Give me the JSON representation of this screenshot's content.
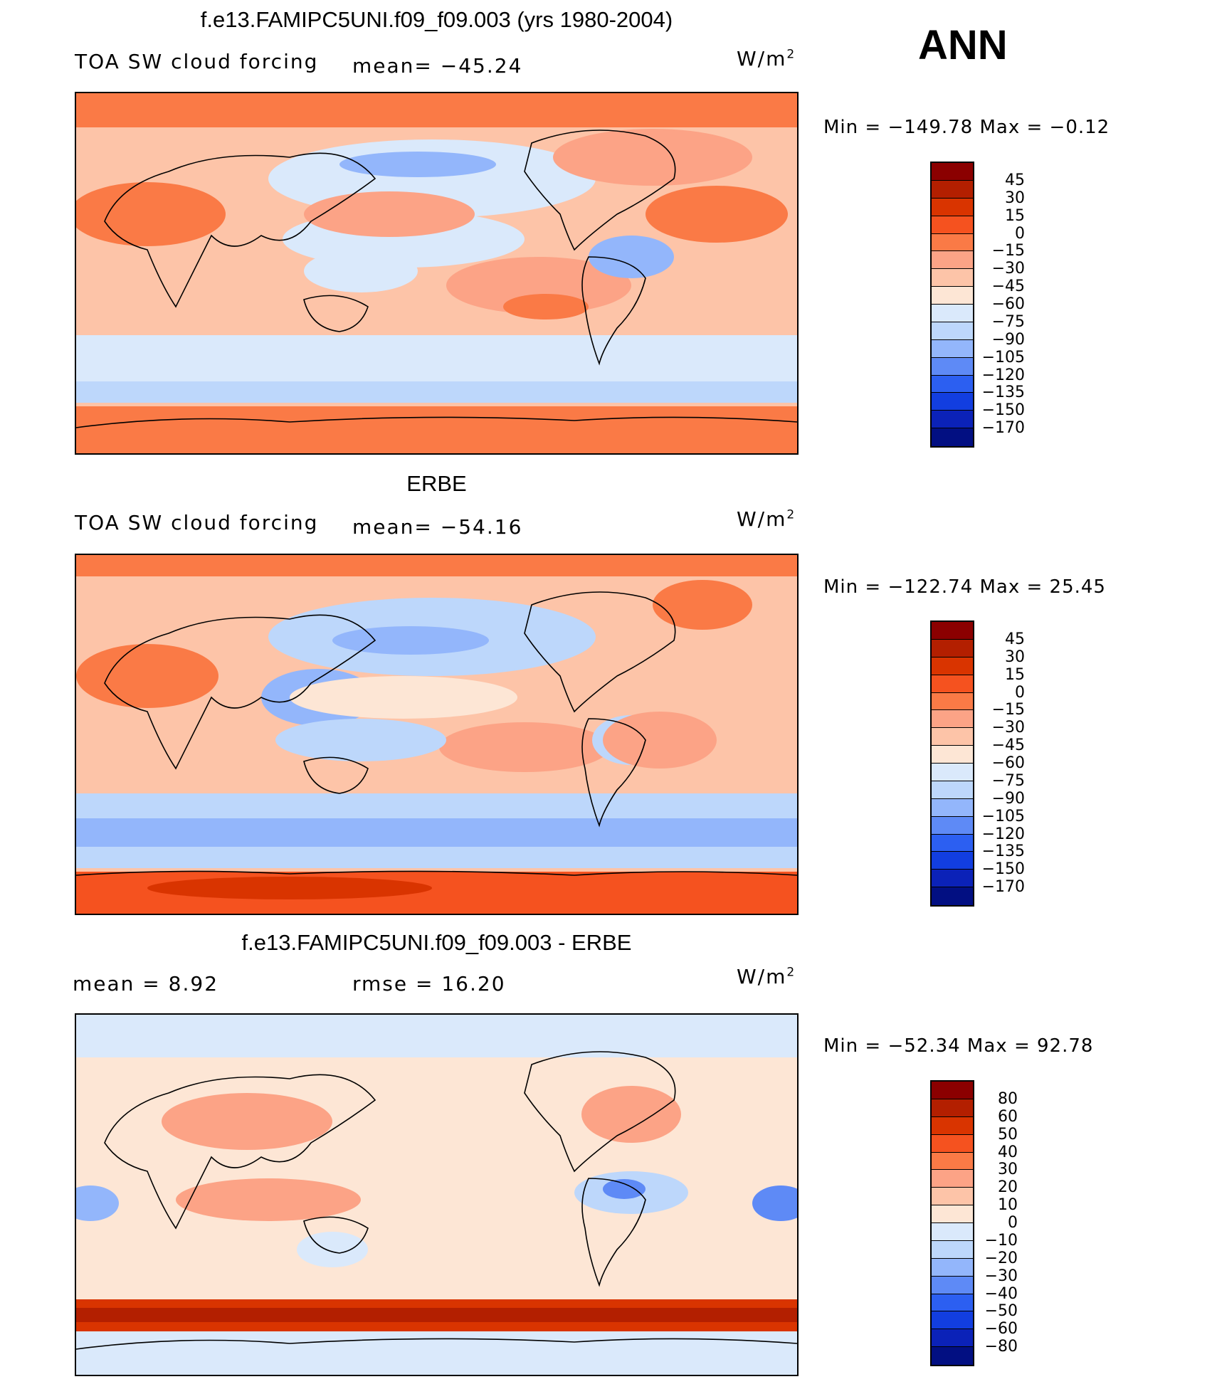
{
  "season": "ANN",
  "unit_label": "W/m",
  "unit_sup": "2",
  "chart_data": [
    {
      "type": "heatmap",
      "title": "f.e13.FAMIPC5UNI.f09_f09.003 (yrs 1980-2004)",
      "left_label": "TOA SW cloud forcing",
      "mean_text": "mean= −45.24",
      "min_max_text": "Min = −149.78 Max =  −0.12",
      "colorbar_levels": [
        "45",
        "30",
        "15",
        "0",
        "−15",
        "−30",
        "−45",
        "−60",
        "−75",
        "−90",
        "−105",
        "−120",
        "−135",
        "−150",
        "−170"
      ],
      "colorbar_colors": [
        "#8b0000",
        "#b31f00",
        "#d93400",
        "#f5521f",
        "#fa7a46",
        "#fca386",
        "#fdc4a8",
        "#fde6d5",
        "#dae9fb",
        "#bdd7fb",
        "#93b6fb",
        "#5e8af6",
        "#2c5ff1",
        "#123ee0",
        "#0b22b8",
        "#020f82"
      ]
    },
    {
      "type": "heatmap",
      "title": "ERBE",
      "left_label": "TOA SW cloud forcing",
      "mean_text": "mean= −54.16",
      "min_max_text": "Min = −122.74 Max =  25.45",
      "colorbar_levels": [
        "45",
        "30",
        "15",
        "0",
        "−15",
        "−30",
        "−45",
        "−60",
        "−75",
        "−90",
        "−105",
        "−120",
        "−135",
        "−150",
        "−170"
      ],
      "colorbar_colors": [
        "#8b0000",
        "#b31f00",
        "#d93400",
        "#f5521f",
        "#fa7a46",
        "#fca386",
        "#fdc4a8",
        "#fde6d5",
        "#dae9fb",
        "#bdd7fb",
        "#93b6fb",
        "#5e8af6",
        "#2c5ff1",
        "#123ee0",
        "#0b22b8",
        "#020f82"
      ]
    },
    {
      "type": "heatmap",
      "title": "f.e13.FAMIPC5UNI.f09_f09.003 - ERBE",
      "left_label": "mean =   8.92",
      "mean_text": "rmse =   16.20",
      "min_max_text": "Min = −52.34 Max =  92.78",
      "colorbar_levels": [
        "80",
        "60",
        "50",
        "40",
        "30",
        "20",
        "10",
        "0",
        "−10",
        "−20",
        "−30",
        "−40",
        "−50",
        "−60",
        "−80"
      ],
      "colorbar_colors": [
        "#8b0000",
        "#b31f00",
        "#d93400",
        "#f5521f",
        "#fa7a46",
        "#fca386",
        "#fdc4a8",
        "#fde6d5",
        "#dae9fb",
        "#bdd7fb",
        "#93b6fb",
        "#5e8af6",
        "#2c5ff1",
        "#123ee0",
        "#0b22b8",
        "#020f82"
      ]
    }
  ]
}
